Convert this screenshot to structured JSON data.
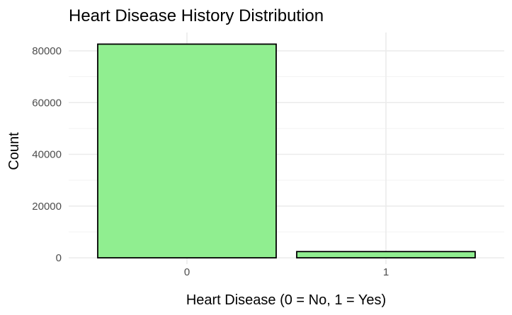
{
  "chart_data": {
    "type": "bar",
    "title": "Heart Disease History Distribution",
    "xlabel": "Heart Disease (0 = No, 1 = Yes)",
    "ylabel": "Count",
    "categories": [
      "0",
      "1"
    ],
    "values": [
      82600,
      2400
    ],
    "ylim": [
      0,
      85000
    ],
    "yticks": [
      0,
      20000,
      40000,
      60000,
      80000
    ],
    "ytick_labels": [
      "0",
      "20000",
      "40000",
      "60000",
      "80000"
    ],
    "grid": true,
    "bar_fill": "#90ee90",
    "bar_stroke": "#000000",
    "grid_color": "#ebebeb"
  }
}
